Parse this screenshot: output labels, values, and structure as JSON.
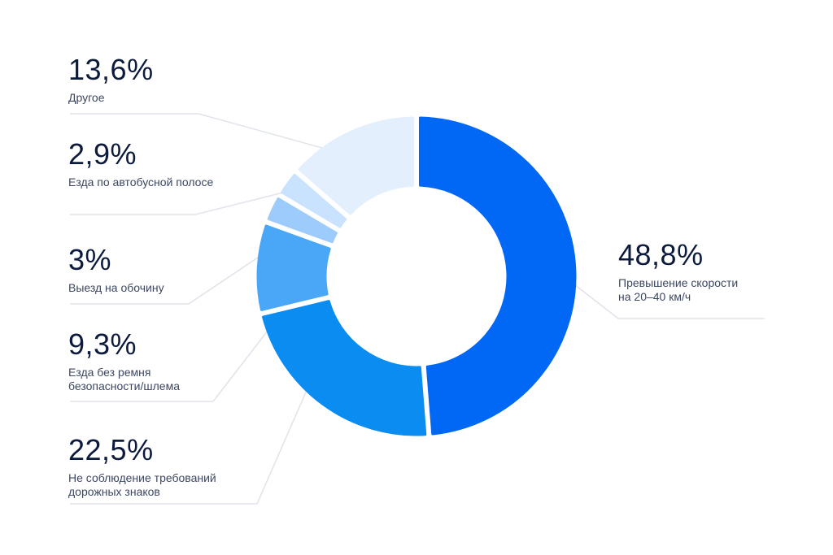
{
  "chart_data": {
    "type": "pie",
    "variant": "donut",
    "slices": [
      {
        "value": 48.8,
        "value_label": "48,8%",
        "label": "Превышение скорости\nна 20–40 км/ч",
        "color": "#0068f5"
      },
      {
        "value": 22.5,
        "value_label": "22,5%",
        "label": "Не соблюдение требований\nдорожных знаков",
        "color": "#0a8cf0"
      },
      {
        "value": 9.3,
        "value_label": "9,3%",
        "label": "Езда без ремня\nбезопасности/шлема",
        "color": "#4aa6f7"
      },
      {
        "value": 3,
        "value_label": "3%",
        "label": "Выезд на обочину",
        "color": "#9dcbfb"
      },
      {
        "value": 2.9,
        "value_label": "2,9%",
        "label": "Езда по автобусной полосе",
        "color": "#c9e2fd"
      },
      {
        "value": 13.6,
        "value_label": "13,6%",
        "label": "Другое",
        "color": "#e4effd"
      }
    ],
    "start_angle_deg": 0,
    "direction": "clockwise",
    "legend_placement": "callouts"
  }
}
